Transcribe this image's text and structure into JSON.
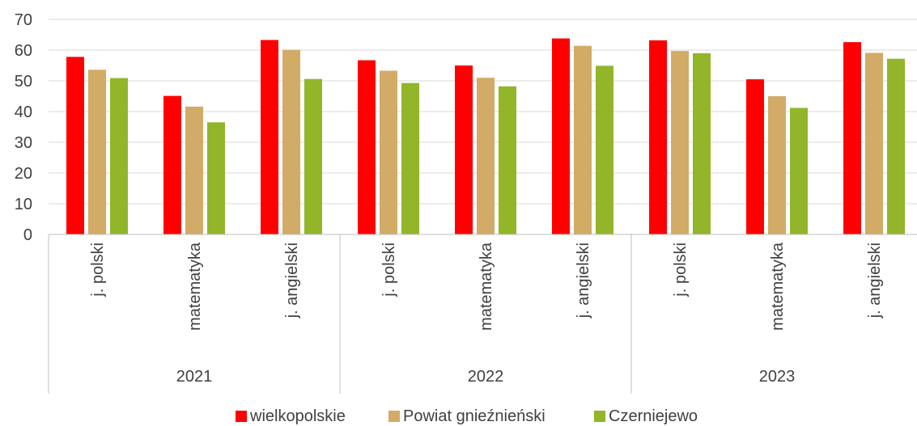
{
  "chart_data": {
    "type": "bar",
    "groups": [
      "2021",
      "2022",
      "2023"
    ],
    "subjects": [
      "j. polski",
      "matematyka",
      "j. angielski"
    ],
    "categories": [
      {
        "group": "2021",
        "label": "j. polski"
      },
      {
        "group": "2021",
        "label": "matematyka"
      },
      {
        "group": "2021",
        "label": "j. angielski"
      },
      {
        "group": "2022",
        "label": "j. polski"
      },
      {
        "group": "2022",
        "label": "matematyka"
      },
      {
        "group": "2022",
        "label": "j. angielski"
      },
      {
        "group": "2023",
        "label": "j. polski"
      },
      {
        "group": "2023",
        "label": "matematyka"
      },
      {
        "group": "2023",
        "label": "j. angielski"
      }
    ],
    "series": [
      {
        "name": "wielkopolskie",
        "color": "#ff0000",
        "values": [
          57.8,
          45.1,
          63.3,
          56.7,
          55.0,
          63.8,
          63.2,
          50.5,
          62.6
        ]
      },
      {
        "name": "Powiat gnieźnieński",
        "color": "#d2ab67",
        "values": [
          53.6,
          41.6,
          60.1,
          53.3,
          51.0,
          61.4,
          59.7,
          45.0,
          59.1
        ]
      },
      {
        "name": "Czerniejewo",
        "color": "#92b52a",
        "values": [
          50.9,
          36.5,
          50.6,
          49.3,
          48.2,
          54.9,
          59.0,
          41.2,
          57.2
        ]
      }
    ],
    "ylim": [
      0,
      70
    ],
    "yticks": [
      0,
      10,
      20,
      30,
      40,
      50,
      60,
      70
    ],
    "grid": true,
    "legend": "bottom",
    "title": "",
    "xlabel": "",
    "ylabel": ""
  }
}
